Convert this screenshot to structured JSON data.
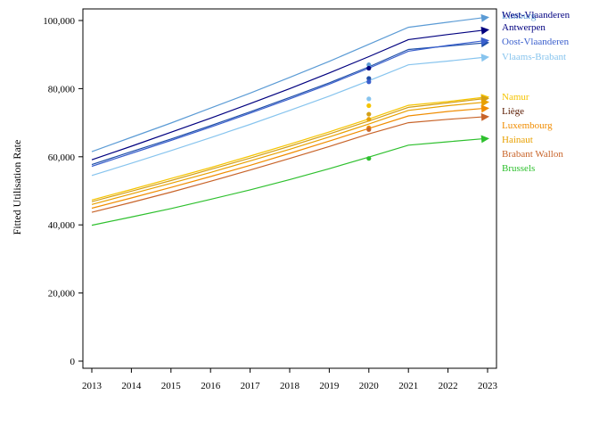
{
  "chart_data": {
    "type": "line",
    "title": "",
    "xlabel": "",
    "ylabel": "Fitted Utilisation Rate",
    "x": [
      2013,
      2014,
      2015,
      2016,
      2017,
      2018,
      2019,
      2020,
      2021,
      2022,
      2023
    ],
    "xlim": [
      2013,
      2023
    ],
    "ylim": [
      0,
      100000
    ],
    "yticks": [
      0,
      20000,
      40000,
      60000,
      80000,
      100000
    ],
    "ytick_labels": [
      "0",
      "20,000",
      "40,000",
      "60,000",
      "80,000",
      "100,000"
    ],
    "xtick_labels": [
      "2013",
      "2014",
      "2015",
      "2016",
      "2017",
      "2018",
      "2019",
      "2020",
      "2021",
      "2022",
      "2023"
    ],
    "grid": false,
    "legend": "direct labels at right end of lines",
    "observed_year": 2020,
    "series": [
      {
        "name": "Limburg",
        "color": "#5b9bd5",
        "values": [
          61500,
          65700,
          69900,
          74300,
          78700,
          83300,
          88000,
          93000,
          98000,
          99500,
          101000
        ],
        "observed": 87000
      },
      {
        "name": "West-Vlaanderen",
        "color": "#1f4fa8",
        "values": [
          57700,
          61500,
          65200,
          69100,
          73200,
          77400,
          81700,
          86400,
          91500,
          92500,
          93500
        ],
        "observed": 83000
      },
      {
        "name": "Antwerpen",
        "color": "#00007f",
        "values": [
          59100,
          63100,
          67200,
          71300,
          75600,
          80000,
          84600,
          89400,
          94400,
          95900,
          97300
        ],
        "observed": 86000
      },
      {
        "name": "Oost-Vlaanderen",
        "color": "#3a5fcd",
        "values": [
          57200,
          61000,
          64800,
          68700,
          72800,
          77000,
          81300,
          86000,
          91000,
          92700,
          94200
        ],
        "observed": 82000
      },
      {
        "name": "Vlaams-Brabant",
        "color": "#87c4ee",
        "values": [
          54500,
          58100,
          61800,
          65600,
          69500,
          73600,
          77800,
          82300,
          87000,
          88100,
          89300
        ],
        "observed": 77000
      },
      {
        "name": "Namur",
        "color": "#f5c400",
        "values": [
          47300,
          50400,
          53600,
          56800,
          60200,
          63700,
          67300,
          71100,
          75100,
          76200,
          77600
        ],
        "observed": 75000
      },
      {
        "name": "Liège",
        "color": "#d4a017",
        "values": [
          46800,
          49900,
          53000,
          56300,
          59600,
          63100,
          66700,
          70500,
          74500,
          75800,
          77200
        ],
        "observed": 72500
      },
      {
        "name": "Luxembourg",
        "color": "#f08c00",
        "values": [
          44900,
          47900,
          51000,
          54200,
          57500,
          61000,
          64600,
          68300,
          72000,
          73300,
          74300
        ],
        "observed": 68500
      },
      {
        "name": "Hainaut",
        "color": "#e8a000",
        "values": [
          46000,
          49100,
          52200,
          55400,
          58800,
          62200,
          65800,
          69600,
          73600,
          75000,
          76100
        ],
        "observed": 71000
      },
      {
        "name": "Brabant Wallon",
        "color": "#c8642a",
        "values": [
          43700,
          46600,
          49600,
          52800,
          56100,
          59500,
          63000,
          66700,
          70000,
          71000,
          71800
        ],
        "observed": 68000
      },
      {
        "name": "Brussels",
        "color": "#2ec02e",
        "values": [
          39900,
          42300,
          44800,
          47500,
          50300,
          53300,
          56500,
          59900,
          63400,
          64400,
          65400
        ],
        "observed": 59500
      }
    ],
    "labels": [
      {
        "text": "West-Vlaanderen",
        "color": "#000080"
      },
      {
        "text": "Antwerpen",
        "color": "#00007f"
      },
      {
        "text": "Oost-Vlaanderen",
        "color": "#3a5fcd"
      },
      {
        "text": "Vlaams-Brabant",
        "color": "#87c4ee"
      },
      {
        "text": "Namur",
        "color": "#f5c400"
      },
      {
        "text": "Liège",
        "color": "#5a1a00"
      },
      {
        "text": "Luxembourg",
        "color": "#f08c00"
      },
      {
        "text": "Hainaut",
        "color": "#e8a000"
      },
      {
        "text": "Brabant Wallon",
        "color": "#c8642a"
      },
      {
        "text": "Brussels",
        "color": "#2ec02e"
      }
    ],
    "overlap_label": {
      "text": "Limburg",
      "color": "#5b9bd5"
    }
  }
}
